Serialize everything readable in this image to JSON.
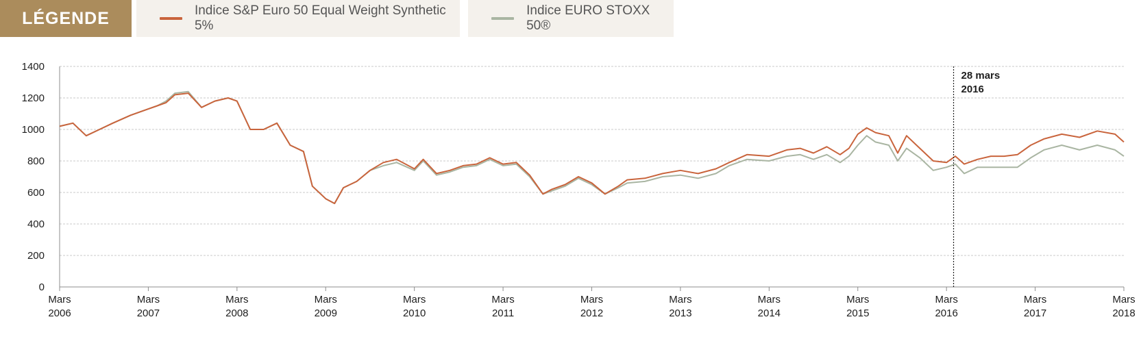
{
  "legend": {
    "title": "LÉGENDE",
    "items": [
      {
        "label": "Indice S&P Euro 50 Equal Weight Synthetic 5%",
        "color": "#c9643c",
        "icon": "line-swatch-icon"
      },
      {
        "label": "Indice EURO STOXX 50®",
        "color": "#a9b5a2",
        "icon": "line-swatch-icon"
      }
    ]
  },
  "chart_data": {
    "type": "line",
    "title": "",
    "xlabel": "",
    "ylabel": "",
    "ylim": [
      0,
      1400
    ],
    "xlim": [
      2006,
      2018
    ],
    "yticks": [
      0,
      200,
      400,
      600,
      800,
      1000,
      1200,
      1400
    ],
    "xticks": [
      {
        "line1": "Mars",
        "line2": "2006",
        "value": 2006
      },
      {
        "line1": "Mars",
        "line2": "2007",
        "value": 2007
      },
      {
        "line1": "Mars",
        "line2": "2008",
        "value": 2008
      },
      {
        "line1": "Mars",
        "line2": "2009",
        "value": 2009
      },
      {
        "line1": "Mars",
        "line2": "2010",
        "value": 2010
      },
      {
        "line1": "Mars",
        "line2": "2011",
        "value": 2011
      },
      {
        "line1": "Mars",
        "line2": "2012",
        "value": 2012
      },
      {
        "line1": "Mars",
        "line2": "2013",
        "value": 2013
      },
      {
        "line1": "Mars",
        "line2": "2014",
        "value": 2014
      },
      {
        "line1": "Mars",
        "line2": "2015",
        "value": 2015
      },
      {
        "line1": "Mars",
        "line2": "2016",
        "value": 2016
      },
      {
        "line1": "Mars",
        "line2": "2017",
        "value": 2017
      },
      {
        "line1": "Mars",
        "line2": "2018",
        "value": 2018
      }
    ],
    "grid": true,
    "annotation": {
      "line1": "28 mars",
      "line2": "2016",
      "x": 2016.08
    },
    "series": [
      {
        "name": "Indice S&P Euro 50 Equal Weight Synthetic 5%",
        "color": "#c9643c",
        "x": [
          2006.0,
          2006.15,
          2006.3,
          2006.45,
          2006.6,
          2006.8,
          2007.0,
          2007.1,
          2007.2,
          2007.3,
          2007.45,
          2007.6,
          2007.75,
          2007.9,
          2008.0,
          2008.15,
          2008.3,
          2008.45,
          2008.6,
          2008.75,
          2008.85,
          2009.0,
          2009.1,
          2009.2,
          2009.35,
          2009.5,
          2009.65,
          2009.8,
          2010.0,
          2010.1,
          2010.25,
          2010.4,
          2010.55,
          2010.7,
          2010.85,
          2011.0,
          2011.15,
          2011.3,
          2011.45,
          2011.55,
          2011.7,
          2011.85,
          2012.0,
          2012.15,
          2012.3,
          2012.4,
          2012.6,
          2012.8,
          2013.0,
          2013.2,
          2013.4,
          2013.55,
          2013.75,
          2014.0,
          2014.2,
          2014.35,
          2014.5,
          2014.65,
          2014.8,
          2014.9,
          2015.0,
          2015.1,
          2015.2,
          2015.35,
          2015.45,
          2015.55,
          2015.7,
          2015.85,
          2016.0,
          2016.1,
          2016.2,
          2016.35,
          2016.5,
          2016.65,
          2016.8,
          2016.95,
          2017.1,
          2017.3,
          2017.5,
          2017.7,
          2017.9,
          2018.0
        ],
        "values": [
          1020,
          1040,
          960,
          1000,
          1040,
          1090,
          1130,
          1150,
          1170,
          1220,
          1230,
          1140,
          1180,
          1200,
          1180,
          1000,
          1000,
          1040,
          900,
          860,
          640,
          560,
          530,
          630,
          670,
          740,
          790,
          810,
          750,
          810,
          720,
          740,
          770,
          780,
          820,
          780,
          790,
          710,
          590,
          620,
          650,
          700,
          660,
          590,
          640,
          680,
          690,
          720,
          740,
          720,
          750,
          790,
          840,
          830,
          870,
          880,
          850,
          890,
          840,
          880,
          970,
          1010,
          980,
          960,
          850,
          960,
          880,
          800,
          790,
          830,
          780,
          810,
          830,
          830,
          840,
          900,
          940,
          970,
          950,
          990,
          970,
          920
        ]
      },
      {
        "name": "Indice EURO STOXX 50®",
        "color": "#a9b5a2",
        "x": [
          2006.0,
          2006.15,
          2006.3,
          2006.45,
          2006.6,
          2006.8,
          2007.0,
          2007.1,
          2007.2,
          2007.3,
          2007.45,
          2007.6,
          2007.75,
          2007.9,
          2008.0,
          2008.15,
          2008.3,
          2008.45,
          2008.6,
          2008.75,
          2008.85,
          2009.0,
          2009.1,
          2009.2,
          2009.35,
          2009.5,
          2009.65,
          2009.8,
          2010.0,
          2010.1,
          2010.25,
          2010.4,
          2010.55,
          2010.7,
          2010.85,
          2011.0,
          2011.15,
          2011.3,
          2011.45,
          2011.55,
          2011.7,
          2011.85,
          2012.0,
          2012.15,
          2012.3,
          2012.4,
          2012.6,
          2012.8,
          2013.0,
          2013.2,
          2013.4,
          2013.55,
          2013.75,
          2014.0,
          2014.2,
          2014.35,
          2014.5,
          2014.65,
          2014.8,
          2014.9,
          2015.0,
          2015.1,
          2015.2,
          2015.35,
          2015.45,
          2015.55,
          2015.7,
          2015.85,
          2016.0,
          2016.1,
          2016.2,
          2016.35,
          2016.5,
          2016.65,
          2016.8,
          2016.95,
          2017.1,
          2017.3,
          2017.5,
          2017.7,
          2017.9,
          2018.0
        ],
        "values": [
          1020,
          1040,
          960,
          1000,
          1040,
          1090,
          1130,
          1150,
          1180,
          1230,
          1240,
          1140,
          1180,
          1200,
          1180,
          1000,
          1000,
          1040,
          900,
          860,
          640,
          560,
          530,
          630,
          670,
          740,
          770,
          790,
          740,
          800,
          710,
          730,
          760,
          770,
          810,
          770,
          780,
          700,
          590,
          610,
          640,
          690,
          650,
          590,
          630,
          660,
          670,
          700,
          710,
          690,
          720,
          770,
          810,
          800,
          830,
          840,
          810,
          840,
          790,
          830,
          900,
          960,
          920,
          900,
          800,
          880,
          820,
          740,
          760,
          780,
          720,
          760,
          760,
          760,
          760,
          820,
          870,
          900,
          870,
          900,
          870,
          830
        ]
      }
    ]
  }
}
